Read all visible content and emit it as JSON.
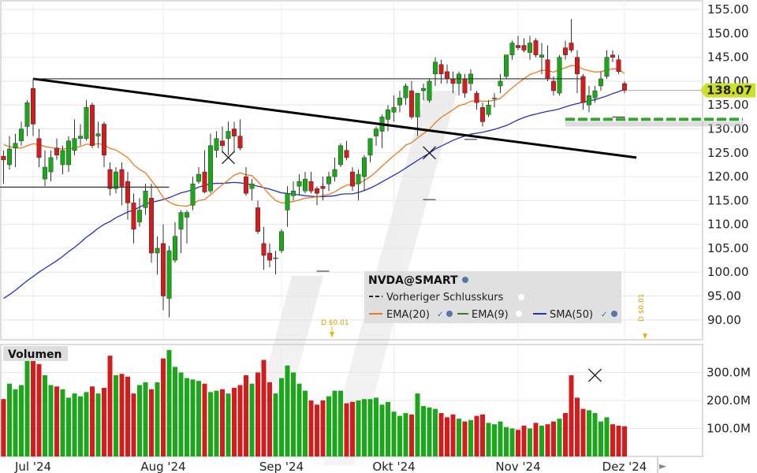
{
  "app": {
    "symbol": "NVDA@SMART",
    "volume_title": "Volumen",
    "legend": {
      "prev_close": "Vorheriger Schlusskurs",
      "ema20": "EMA(20)",
      "ema9": "EMA(9)",
      "sma50": "SMA(50)"
    },
    "dividend_label": "D $0.01",
    "last_price": "138.07"
  },
  "colors": {
    "up": "#1aa81a",
    "down": "#d41c1c",
    "ema20": "#f07818",
    "ema9": "#2e7d32",
    "sma50": "#2233bb",
    "price_badge": "#cfe02a",
    "dividend": "#e8b400"
  },
  "chart_data": {
    "type": "candlestick",
    "price_axis": {
      "ylim": [
        86,
        157
      ],
      "ticks": [
        "155.00",
        "150.00",
        "145.00",
        "140.00",
        "135.00",
        "130.00",
        "125.00",
        "120.00",
        "115.00",
        "110.00",
        "105.00",
        "100.00",
        "95.00",
        "90.00"
      ]
    },
    "volume_axis": {
      "ticks": [
        "300.0M",
        "200.0M",
        "100.0M"
      ],
      "ylim": [
        0,
        400
      ]
    },
    "x_labels": [
      "Jul '24",
      "Aug '24",
      "Sep '24",
      "Okt '24",
      "Nov '24",
      "Dez '24"
    ],
    "x_label_index": [
      5,
      27,
      47,
      66,
      87,
      105
    ],
    "candles": [
      [
        124.3,
        125.5,
        118.5,
        123.5
      ],
      [
        122.5,
        128.5,
        121.5,
        125.8
      ],
      [
        126.0,
        129.0,
        122.0,
        127.0
      ],
      [
        127.5,
        131.5,
        126.5,
        130.0
      ],
      [
        130.5,
        136.0,
        128.5,
        135.5
      ],
      [
        138.5,
        140.5,
        128.5,
        131.0
      ],
      [
        128.0,
        130.0,
        122.0,
        124.0
      ],
      [
        119.5,
        125.5,
        118.0,
        122.0
      ],
      [
        121.0,
        125.5,
        119.0,
        124.0
      ],
      [
        126.0,
        128.0,
        123.5,
        124.5
      ],
      [
        122.5,
        126.5,
        120.5,
        125.5
      ],
      [
        122.5,
        128.5,
        121.0,
        127.5
      ],
      [
        125.5,
        132.0,
        124.5,
        128.0
      ],
      [
        128.0,
        131.0,
        126.5,
        128.5
      ],
      [
        128.0,
        136.0,
        127.5,
        134.5
      ],
      [
        135.0,
        135.5,
        126.0,
        126.5
      ],
      [
        128.5,
        131.5,
        126.0,
        129.0
      ],
      [
        131.0,
        131.5,
        122.0,
        124.5
      ],
      [
        121.5,
        123.0,
        116.0,
        117.5
      ],
      [
        117.5,
        122.0,
        116.5,
        121.0
      ],
      [
        121.5,
        123.0,
        114.0,
        118.0
      ],
      [
        119.0,
        121.0,
        111.0,
        114.5
      ],
      [
        114.5,
        116.5,
        106.0,
        109.0
      ],
      [
        110.5,
        115.5,
        109.5,
        113.0
      ],
      [
        113.5,
        118.5,
        112.0,
        117.0
      ],
      [
        115.5,
        118.5,
        102.0,
        104.0
      ],
      [
        104.0,
        107.5,
        99.5,
        105.0
      ],
      [
        106.0,
        110.0,
        92.0,
        95.0
      ],
      [
        94.5,
        105.5,
        90.5,
        104.5
      ],
      [
        102.5,
        110.5,
        102.0,
        107.5
      ],
      [
        109.0,
        113.0,
        104.0,
        112.5
      ],
      [
        111.5,
        113.0,
        106.0,
        112.5
      ],
      [
        114.0,
        120.0,
        113.0,
        118.5
      ],
      [
        119.0,
        122.0,
        118.5,
        120.5
      ],
      [
        121.0,
        125.5,
        116.5,
        116.8
      ],
      [
        117.0,
        129.0,
        116.5,
        126.5
      ],
      [
        125.5,
        129.5,
        124.0,
        128.0
      ],
      [
        127.5,
        130.5,
        125.0,
        126.5
      ],
      [
        128.0,
        131.5,
        124.5,
        129.5
      ],
      [
        130.0,
        131.5,
        125.0,
        128.5
      ],
      [
        128.5,
        132.0,
        125.5,
        126.0
      ],
      [
        120.0,
        122.0,
        116.0,
        116.5
      ],
      [
        117.5,
        119.5,
        115.0,
        118.5
      ],
      [
        113.5,
        115.0,
        108.0,
        108.5
      ],
      [
        106.0,
        109.5,
        100.5,
        103.5
      ],
      [
        104.0,
        106.0,
        101.0,
        102.5
      ],
      [
        103.0,
        104.5,
        99.5,
        103.0
      ],
      [
        104.5,
        109.0,
        104.0,
        108.5
      ],
      [
        113.0,
        118.0,
        109.5,
        116.5
      ],
      [
        116.0,
        119.0,
        115.0,
        117.0
      ],
      [
        118.0,
        120.5,
        116.0,
        119.0
      ],
      [
        117.0,
        121.0,
        116.5,
        119.5
      ],
      [
        119.0,
        121.0,
        116.5,
        117.0
      ],
      [
        117.5,
        118.0,
        114.0,
        116.5
      ],
      [
        118.0,
        120.0,
        115.0,
        117.5
      ],
      [
        118.5,
        121.0,
        117.0,
        120.0
      ],
      [
        120.0,
        124.0,
        119.0,
        121.5
      ],
      [
        122.5,
        127.0,
        122.0,
        126.5
      ],
      [
        125.5,
        127.5,
        123.5,
        124.0
      ],
      [
        121.0,
        122.0,
        117.0,
        118.0
      ],
      [
        118.5,
        121.5,
        115.0,
        120.5
      ],
      [
        120.0,
        124.5,
        117.0,
        124.0
      ],
      [
        124.5,
        128.0,
        123.0,
        128.0
      ],
      [
        128.5,
        130.5,
        126.5,
        130.0
      ],
      [
        129.5,
        133.0,
        126.0,
        132.5
      ],
      [
        132.0,
        135.0,
        129.5,
        134.0
      ],
      [
        133.5,
        137.0,
        131.5,
        134.5
      ],
      [
        135.0,
        138.0,
        133.5,
        136.5
      ],
      [
        136.5,
        139.5,
        135.0,
        139.0
      ],
      [
        138.0,
        140.0,
        132.0,
        132.5
      ],
      [
        132.5,
        137.5,
        128.5,
        137.5
      ],
      [
        138.0,
        139.5,
        136.0,
        138.5
      ],
      [
        136.0,
        140.5,
        135.5,
        140.0
      ],
      [
        141.5,
        145.0,
        139.0,
        144.0
      ],
      [
        143.5,
        144.5,
        139.5,
        141.5
      ],
      [
        142.0,
        143.5,
        139.5,
        140.5
      ],
      [
        140.5,
        142.0,
        137.5,
        139.5
      ],
      [
        139.5,
        142.0,
        137.0,
        141.5
      ],
      [
        140.5,
        141.5,
        136.5,
        137.5
      ],
      [
        139.5,
        142.5,
        138.0,
        141.5
      ],
      [
        137.5,
        138.0,
        134.0,
        135.5
      ],
      [
        134.5,
        135.5,
        130.5,
        131.5
      ],
      [
        133.0,
        136.0,
        132.5,
        135.0
      ],
      [
        136.5,
        137.5,
        134.5,
        136.5
      ],
      [
        139.0,
        141.5,
        137.5,
        140.0
      ],
      [
        141.0,
        145.5,
        140.5,
        145.5
      ],
      [
        145.5,
        148.5,
        144.5,
        148.0
      ],
      [
        147.5,
        149.5,
        146.5,
        147.0
      ],
      [
        147.5,
        149.0,
        146.0,
        146.5
      ],
      [
        146.0,
        149.5,
        144.5,
        148.0
      ],
      [
        148.5,
        149.0,
        145.0,
        145.5
      ],
      [
        145.0,
        148.0,
        141.5,
        145.5
      ],
      [
        144.5,
        147.5,
        140.0,
        140.5
      ],
      [
        140.0,
        141.0,
        137.0,
        138.0
      ],
      [
        137.5,
        145.5,
        137.0,
        145.0
      ],
      [
        147.0,
        148.5,
        144.5,
        145.5
      ],
      [
        148.0,
        153.0,
        146.0,
        146.5
      ],
      [
        145.0,
        146.5,
        137.5,
        141.5
      ],
      [
        141.0,
        141.5,
        134.0,
        135.5
      ],
      [
        135.0,
        139.0,
        133.5,
        137.0
      ],
      [
        136.5,
        139.0,
        135.5,
        138.0
      ],
      [
        139.0,
        142.0,
        138.0,
        140.5
      ],
      [
        141.0,
        146.5,
        140.5,
        145.0
      ],
      [
        145.5,
        146.5,
        144.0,
        145.0
      ],
      [
        144.5,
        145.5,
        141.5,
        142.0
      ],
      [
        139.5,
        140.0,
        137.5,
        138.07
      ]
    ],
    "ema20": [
      126.7,
      126.3,
      126.0,
      126.0,
      126.5,
      126.9,
      126.7,
      126.3,
      126.1,
      125.9,
      125.8,
      125.9,
      126.0,
      126.3,
      126.8,
      126.7,
      126.9,
      126.7,
      125.9,
      125.6,
      124.8,
      124.0,
      122.5,
      121.5,
      120.8,
      119.2,
      117.6,
      115.6,
      114.7,
      114.1,
      113.9,
      113.8,
      114.3,
      115.0,
      115.2,
      116.2,
      117.3,
      118.3,
      119.3,
      120.3,
      120.8,
      120.4,
      120.2,
      119.0,
      117.6,
      116.2,
      115.0,
      114.5,
      114.6,
      114.8,
      115.1,
      115.5,
      115.6,
      115.8,
      116.0,
      116.3,
      116.8,
      117.6,
      118.2,
      118.4,
      118.6,
      119.2,
      120.0,
      121.0,
      122.2,
      123.3,
      124.4,
      125.4,
      126.6,
      127.1,
      128.1,
      129.0,
      129.9,
      131.3,
      132.4,
      133.2,
      134.0,
      134.9,
      135.2,
      135.8,
      135.9,
      135.8,
      135.8,
      136.0,
      136.4,
      137.5,
      138.6,
      139.6,
      140.5,
      141.4,
      141.8,
      142.3,
      142.2,
      141.9,
      142.4,
      142.8,
      143.3,
      143.2,
      142.5,
      142.2,
      141.9,
      142.0,
      142.3,
      142.6,
      142.5,
      141.6
    ],
    "sma50": [
      94.5,
      95.3,
      96.2,
      97.2,
      98.2,
      99.1,
      100.0,
      100.8,
      101.6,
      102.4,
      103.3,
      104.3,
      105.2,
      106.2,
      107.3,
      108.2,
      109.2,
      110.0,
      110.6,
      111.4,
      112.0,
      112.6,
      113.0,
      113.6,
      114.3,
      114.6,
      114.9,
      115.2,
      115.6,
      116.1,
      116.6,
      116.9,
      117.3,
      117.8,
      118.2,
      118.5,
      118.6,
      118.6,
      118.7,
      118.8,
      118.7,
      118.5,
      118.3,
      118.0,
      117.7,
      117.4,
      117.0,
      116.6,
      116.5,
      116.3,
      116.2,
      116.0,
      115.9,
      115.8,
      115.8,
      115.9,
      116.0,
      116.3,
      116.4,
      116.4,
      116.7,
      117.1,
      117.6,
      118.2,
      118.9,
      119.6,
      120.3,
      121.0,
      121.8,
      122.6,
      123.4,
      124.2,
      124.9,
      125.8,
      126.4,
      127.0,
      127.6,
      128.1,
      128.5,
      128.9,
      129.1,
      129.3,
      129.6,
      129.9,
      130.3,
      130.7,
      131.3,
      131.9,
      132.4,
      132.8,
      133.1,
      133.4,
      133.7,
      133.9,
      134.2,
      134.6,
      135.0,
      135.3,
      135.6,
      135.9,
      136.1,
      136.5,
      136.9,
      137.4,
      137.8,
      138.3
    ],
    "volume": [
      205,
      260,
      240,
      255,
      390,
      360,
      330,
      290,
      255,
      250,
      240,
      210,
      225,
      215,
      230,
      250,
      225,
      245,
      360,
      290,
      295,
      285,
      225,
      255,
      265,
      240,
      265,
      350,
      380,
      320,
      300,
      280,
      275,
      270,
      260,
      230,
      235,
      240,
      225,
      245,
      255,
      290,
      260,
      300,
      345,
      265,
      225,
      280,
      325,
      300,
      260,
      235,
      200,
      185,
      200,
      215,
      235,
      235,
      190,
      195,
      200,
      205,
      205,
      210,
      185,
      195,
      160,
      145,
      155,
      150,
      225,
      180,
      175,
      170,
      155,
      140,
      150,
      135,
      125,
      130,
      145,
      150,
      120,
      115,
      125,
      105,
      100,
      95,
      110,
      100,
      120,
      110,
      115,
      125,
      135,
      155,
      290,
      210,
      170,
      165,
      155,
      125,
      140,
      115,
      110,
      108
    ],
    "annotations": {
      "trendline": [
        [
          5,
          140.5
        ],
        [
          107,
          124.0
        ]
      ],
      "horizontal_resistance": [
        [
          5,
          140.5
        ],
        [
          98,
          140.5
        ]
      ],
      "support_line": [
        [
          -10,
          117.8
        ],
        [
          28,
          117.8
        ]
      ],
      "support_dashed": [
        [
          95,
          132.0
        ],
        [
          125,
          132.0
        ]
      ],
      "ask_bid_marker": [
        [
          100,
          136.8
        ]
      ]
    },
    "series": [
      {
        "name": "EMA(20)"
      },
      {
        "name": "EMA(9)"
      },
      {
        "name": "SMA(50)"
      }
    ]
  }
}
